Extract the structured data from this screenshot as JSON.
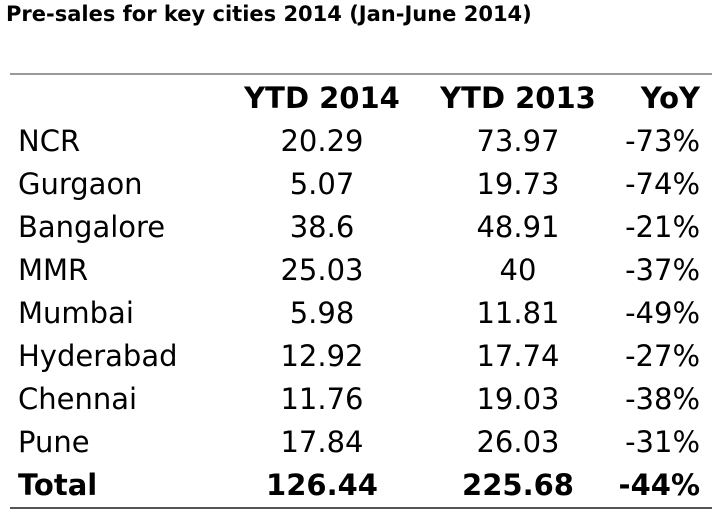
{
  "title": "Pre-sales for key cities 2014 (Jan-June 2014)",
  "chart_data": {
    "type": "table",
    "title": "Pre-sales for key cities 2014 (Jan-June 2014)",
    "columns": [
      "",
      "YTD 2014",
      "YTD 2013",
      "YoY"
    ],
    "rows": [
      {
        "city": "NCR",
        "ytd2014": "20.29",
        "ytd2013": "73.97",
        "yoy": "-73%"
      },
      {
        "city": "Gurgaon",
        "ytd2014": "5.07",
        "ytd2013": "19.73",
        "yoy": "-74%"
      },
      {
        "city": "Bangalore",
        "ytd2014": "38.6",
        "ytd2013": "48.91",
        "yoy": "-21%"
      },
      {
        "city": "MMR",
        "ytd2014": "25.03",
        "ytd2013": "40",
        "yoy": "-37%"
      },
      {
        "city": "Mumbai",
        "ytd2014": "5.98",
        "ytd2013": "11.81",
        "yoy": "-49%"
      },
      {
        "city": "Hyderabad",
        "ytd2014": "12.92",
        "ytd2013": "17.74",
        "yoy": "-27%"
      },
      {
        "city": "Chennai",
        "ytd2014": "11.76",
        "ytd2013": "19.03",
        "yoy": "-38%"
      },
      {
        "city": "Pune",
        "ytd2014": "17.84",
        "ytd2013": "26.03",
        "yoy": "-31%"
      }
    ],
    "total": {
      "city": "Total",
      "ytd2014": "126.44",
      "ytd2013": "225.68",
      "yoy": "-44%"
    }
  }
}
